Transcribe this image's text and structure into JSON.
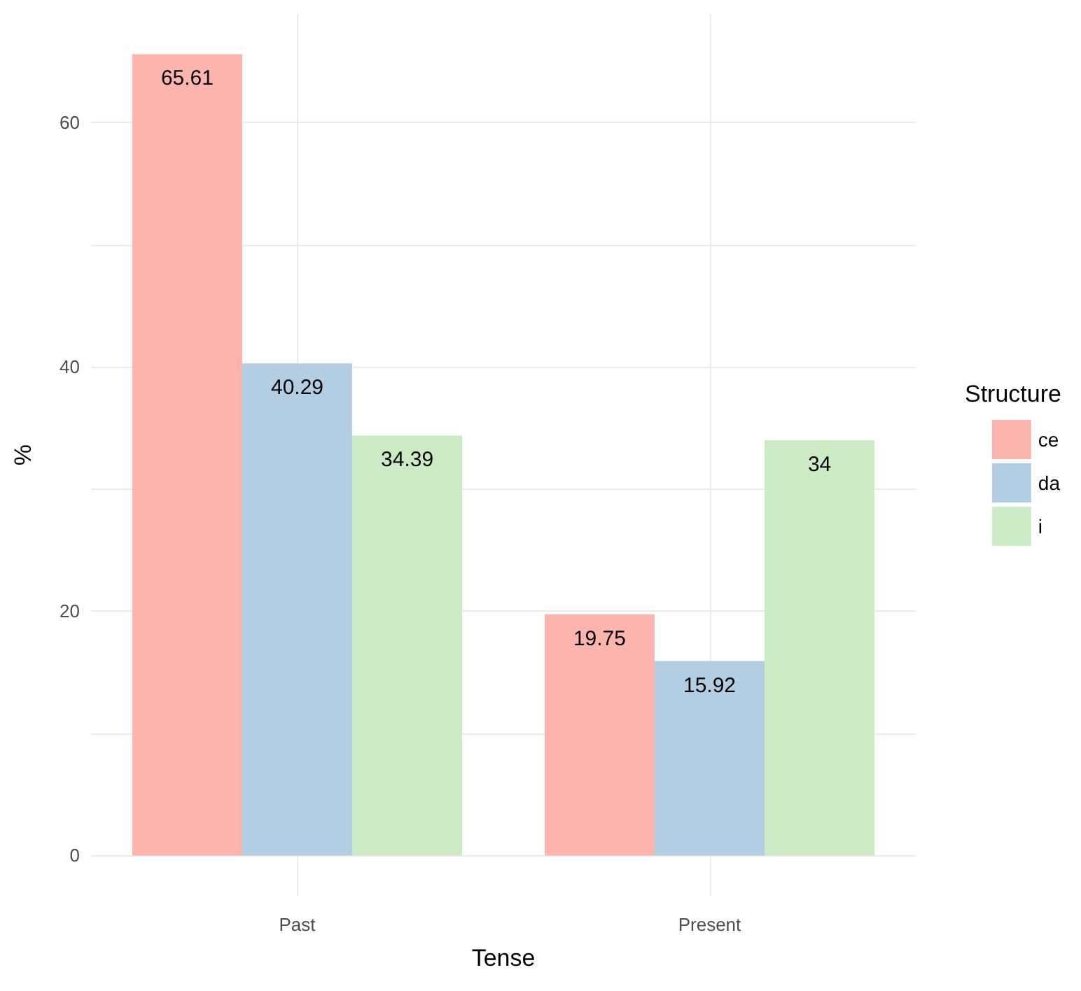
{
  "chart_data": {
    "type": "bar",
    "xlabel": "Tense",
    "ylabel": "%",
    "legend_title": "Structure",
    "categories": [
      "Past",
      "Present"
    ],
    "series": [
      {
        "name": "ce",
        "color": "#fbb4ae",
        "values": [
          65.61,
          19.75
        ]
      },
      {
        "name": "da",
        "color": "#b3cde3",
        "values": [
          40.29,
          15.92
        ]
      },
      {
        "name": "i",
        "color": "#ccebc5",
        "values": [
          34.39,
          34
        ]
      }
    ],
    "ylim": [
      -3.3,
      68.9
    ],
    "yticks": [
      0,
      {
        "value": 10,
        "label": null
      },
      20,
      {
        "value": 30,
        "label": null
      },
      40,
      {
        "value": 50,
        "label": null
      },
      60
    ],
    "grid": true,
    "legend": "right",
    "data_labels": true
  }
}
